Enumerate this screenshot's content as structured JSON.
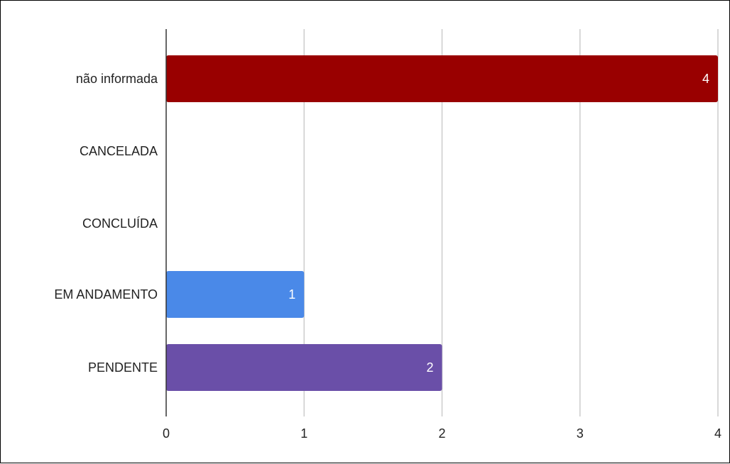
{
  "chart_data": {
    "type": "bar",
    "orientation": "horizontal",
    "title": "",
    "xlabel": "",
    "ylabel": "",
    "categories": [
      "não informada",
      "CANCELADA",
      "CONCLUÍDA",
      "EM ANDAMENTO",
      "PENDENTE"
    ],
    "values": [
      4,
      0,
      0,
      1,
      2
    ],
    "data_labels": [
      "4",
      "",
      "",
      "1",
      "2"
    ],
    "colors": [
      "#990000",
      "#990000",
      "#990000",
      "#4a89e8",
      "#6a4fa8"
    ],
    "xlim": [
      0,
      4
    ],
    "x_ticks": [
      0,
      1,
      2,
      3,
      4
    ],
    "x_tick_labels": [
      "0",
      "1",
      "2",
      "3",
      "4"
    ],
    "grid": true,
    "legend": "none"
  }
}
